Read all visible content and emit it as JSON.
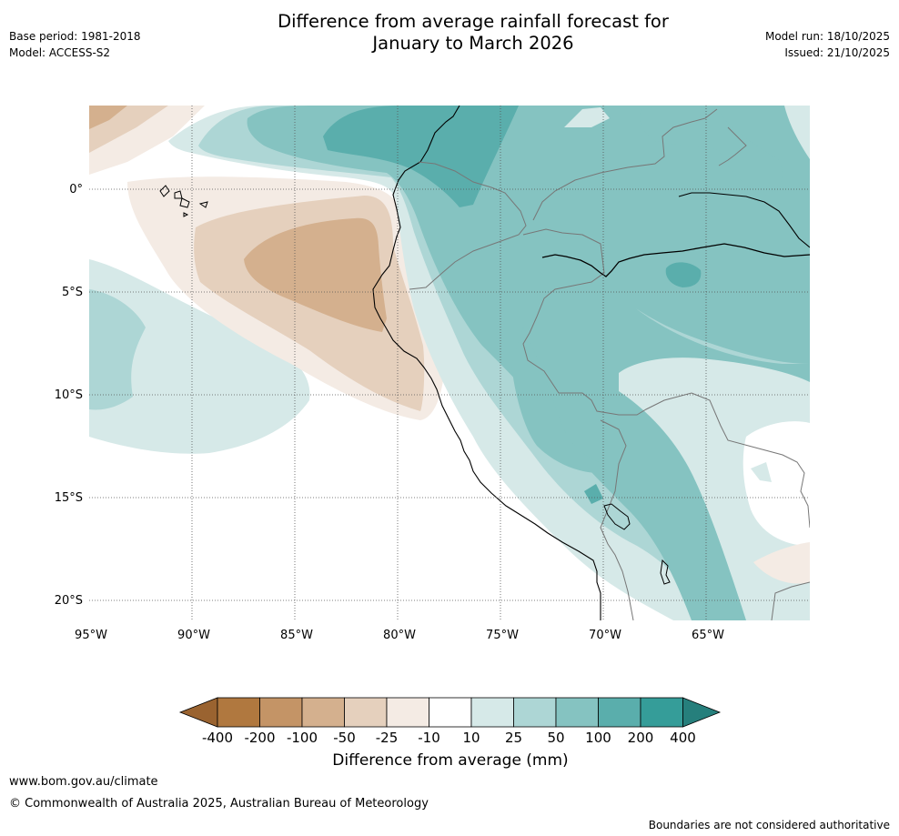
{
  "header": {
    "title_line1": "Difference from average rainfall forecast for",
    "title_line2": "January to March 2026",
    "base_period": "Base period: 1981-2018",
    "model": "Model: ACCESS-S2",
    "model_run": "Model run: 18/10/2025",
    "issued": "Issued: 21/10/2025"
  },
  "map": {
    "lat_labels": [
      "0°",
      "5°S",
      "10°S",
      "15°S",
      "20°S"
    ],
    "lon_labels": [
      "95°W",
      "90°W",
      "85°W",
      "80°W",
      "75°W",
      "70°W",
      "65°W"
    ],
    "colors": {
      "dry_400": "#9a6330",
      "dry_200": "#b0783f",
      "dry_100": "#c49466",
      "dry_50": "#d4b08e",
      "dry_25": "#e5d0bd",
      "dry_10": "#f4ebe4",
      "neutral": "#ffffff",
      "wet_10": "#d6e9e8",
      "wet_25": "#add6d5",
      "wet_50": "#85c3c1",
      "wet_100": "#5aaeac",
      "wet_200": "#359d99",
      "wet_400": "#267f7c"
    }
  },
  "colorbar": {
    "tick_labels": [
      "-400",
      "-200",
      "-100",
      "-50",
      "-25",
      "-10",
      "10",
      "25",
      "50",
      "100",
      "200",
      "400"
    ],
    "title": "Difference from average (mm)"
  },
  "footer": {
    "website": "www.bom.gov.au/climate",
    "copyright": "© Commonwealth of Australia 2025, Australian Bureau of Meteorology",
    "disclaimer": "Boundaries are not considered authoritative"
  }
}
